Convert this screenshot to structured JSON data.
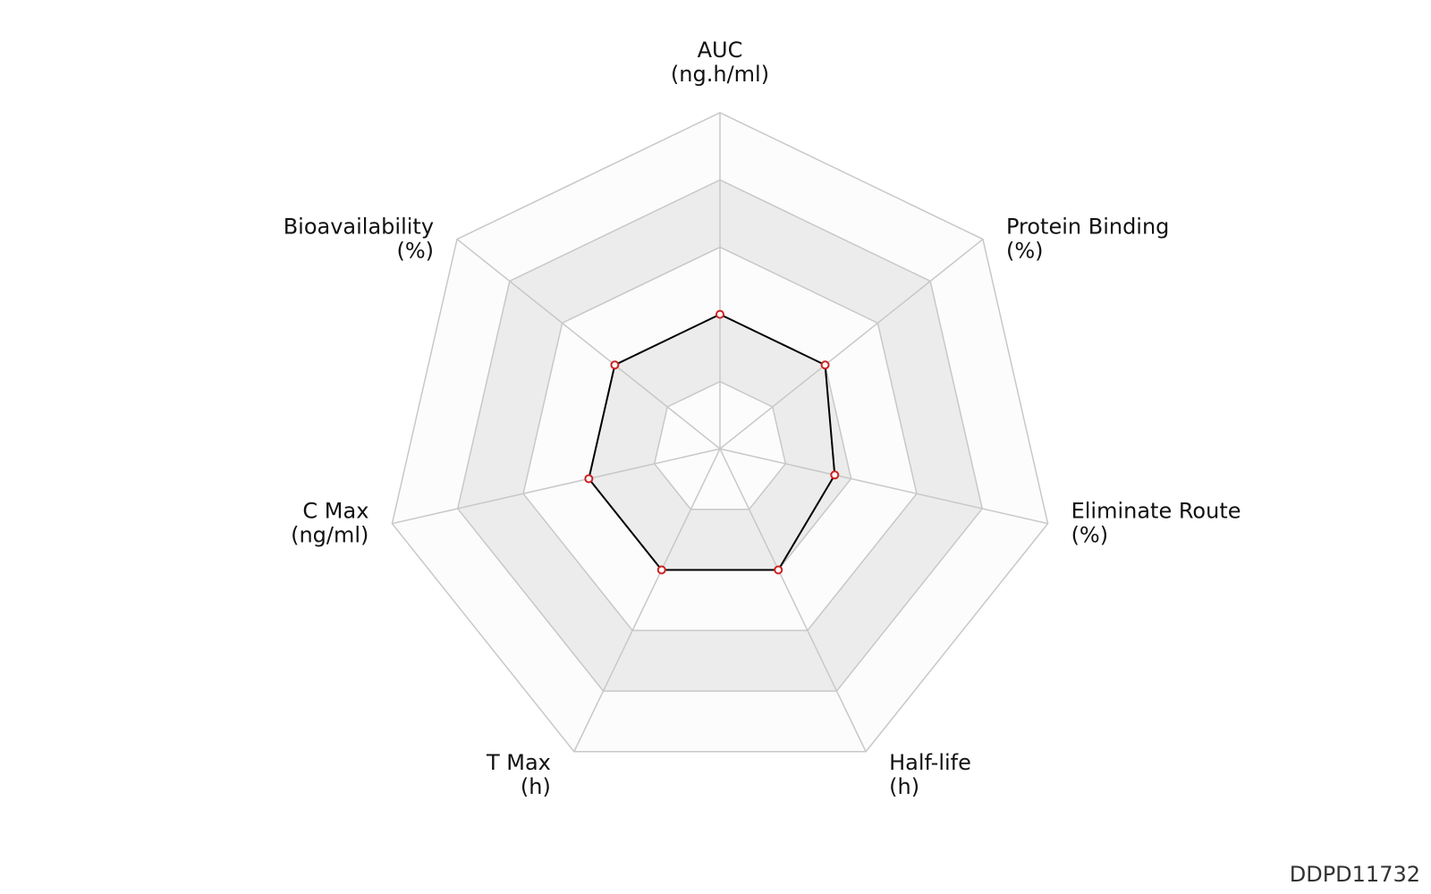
{
  "chart_data": {
    "type": "radar",
    "axes": [
      {
        "name": "AUC",
        "unit": "(ng.h/ml)"
      },
      {
        "name": "Protein Binding",
        "unit": "(%)"
      },
      {
        "name": "Eliminate Route",
        "unit": "(%)"
      },
      {
        "name": "Half-life",
        "unit": "(h)"
      },
      {
        "name": "T Max",
        "unit": "(h)"
      },
      {
        "name": "C Max",
        "unit": "(ng/ml)"
      },
      {
        "name": "Bioavailability",
        "unit": "(%)"
      }
    ],
    "levels": 5,
    "range": [
      0,
      1
    ],
    "series": [
      {
        "values": [
          0.4,
          0.4,
          0.35,
          0.4,
          0.4,
          0.4,
          0.4
        ]
      }
    ],
    "colors": {
      "grid": "#c8c8c8",
      "band_shaded": "#ececec",
      "band_light": "#fcfcfc",
      "series_line": "#000000",
      "point_stroke": "#cc2222",
      "point_fill": "#ffffff"
    }
  },
  "footer": {
    "id_label": "DDPD11732"
  }
}
